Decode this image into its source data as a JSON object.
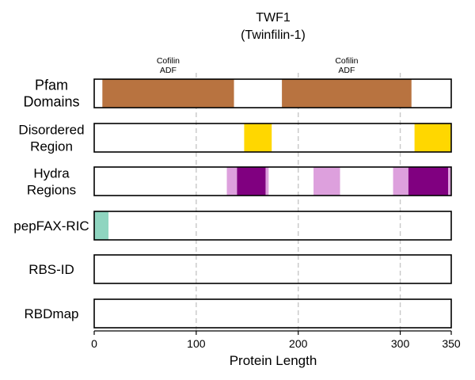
{
  "chart_data": {
    "type": "bar",
    "title": "TWF1",
    "subtitle": "(Twinfilin-1)",
    "xlabel": "Protein Length",
    "xlim": [
      0,
      350
    ],
    "x_ticks": [
      0,
      100,
      200,
      300,
      350
    ],
    "gridlines_x": [
      100,
      200,
      300
    ],
    "grid": true,
    "tracks": [
      {
        "name": "Pfam\nDomains",
        "segments": [
          {
            "start": 8,
            "end": 137,
            "color": "#b87340",
            "label": "Cofilin\nADF"
          },
          {
            "start": 184,
            "end": 311,
            "color": "#b87340",
            "label": "Cofilin\nADF"
          }
        ]
      },
      {
        "name": "Disordered\nRegion",
        "segments": [
          {
            "start": 147,
            "end": 174,
            "color": "#ffd700"
          },
          {
            "start": 314,
            "end": 350,
            "color": "#ffd700"
          }
        ]
      },
      {
        "name": "Hydra\nRegions",
        "segments": [
          {
            "start": 130,
            "end": 140,
            "color": "#dda0dd"
          },
          {
            "start": 140,
            "end": 168,
            "color": "#800080"
          },
          {
            "start": 168,
            "end": 171,
            "color": "#dda0dd"
          },
          {
            "start": 215,
            "end": 241,
            "color": "#dda0dd"
          },
          {
            "start": 293,
            "end": 308,
            "color": "#dda0dd"
          },
          {
            "start": 308,
            "end": 347,
            "color": "#800080"
          },
          {
            "start": 347,
            "end": 350,
            "color": "#dda0dd"
          }
        ]
      },
      {
        "name": "pepFAX-RIC",
        "segments": [
          {
            "start": 0,
            "end": 14,
            "color": "#8fd5c0"
          }
        ]
      },
      {
        "name": "RBS-ID",
        "segments": []
      },
      {
        "name": "RBDmap",
        "segments": []
      }
    ]
  }
}
